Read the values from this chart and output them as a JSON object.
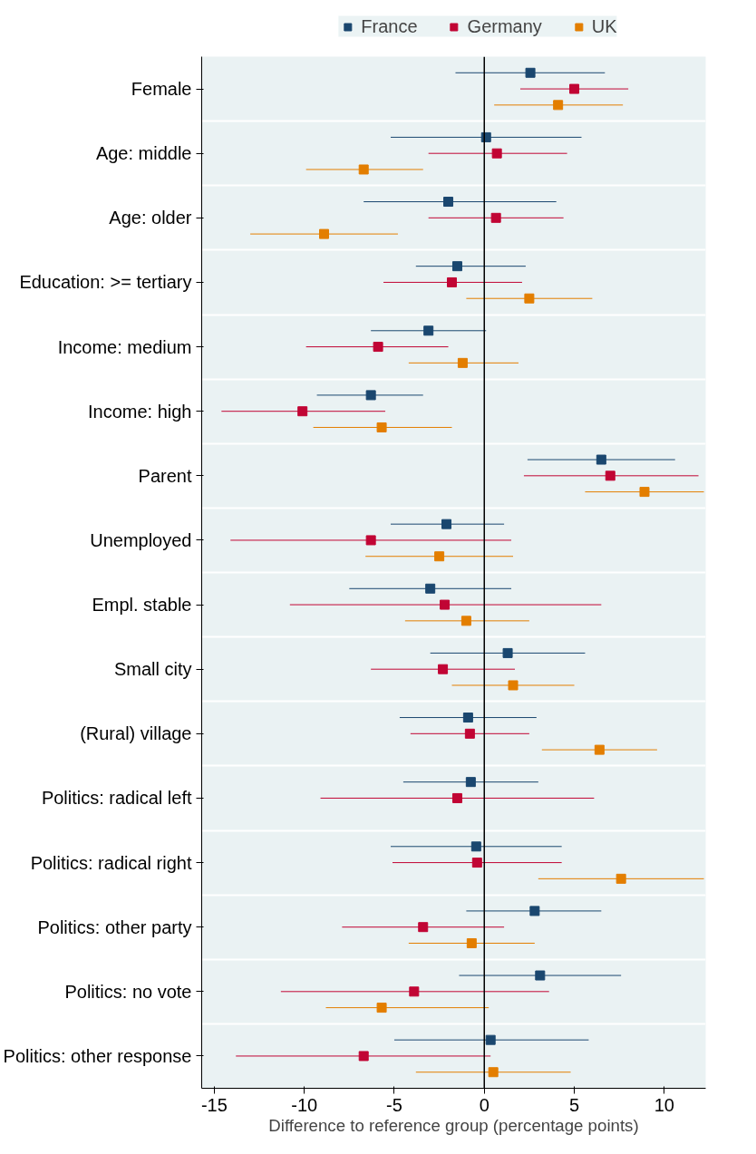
{
  "chart_data": {
    "type": "scatter",
    "orientation": "horizontal",
    "marker": "square",
    "grid": "y",
    "legend": "top",
    "xlabel": "Difference to reference group (percentage points)",
    "xlim": [
      -15.7,
      12.3
    ],
    "xticks": [
      -15,
      -10,
      -5,
      0,
      5,
      10
    ],
    "categories": [
      "Female",
      "Age: middle",
      "Age: older",
      "Education: >= tertiary",
      "Income: medium",
      "Income: high",
      "Parent",
      "Unemployed",
      "Empl. stable",
      "Small city",
      "(Rural) village",
      "Politics: radical left",
      "Politics: radical right",
      "Politics: other party",
      "Politics: no vote",
      "Politics: other response"
    ],
    "series": [
      {
        "name": "France",
        "color": "#1a476f",
        "values": [
          2.56,
          0.1,
          -2.0,
          -1.5,
          -3.1,
          -6.3,
          6.5,
          -2.1,
          -3.0,
          1.3,
          -0.9,
          -0.75,
          -0.45,
          2.8,
          3.1,
          0.35
        ],
        "errors": [
          [
            -1.6,
            6.7
          ],
          [
            -5.2,
            5.4
          ],
          [
            -6.7,
            4.0
          ],
          [
            -3.8,
            2.3
          ],
          [
            -6.3,
            0.1
          ],
          [
            -9.3,
            -3.4
          ],
          [
            2.4,
            10.6
          ],
          [
            -5.2,
            1.1
          ],
          [
            -7.5,
            1.5
          ],
          [
            -3.0,
            5.6
          ],
          [
            -4.7,
            2.9
          ],
          [
            -4.5,
            3.0
          ],
          [
            -5.2,
            4.3
          ],
          [
            -1.0,
            6.5
          ],
          [
            -1.4,
            7.6
          ],
          [
            -5.0,
            5.8
          ]
        ]
      },
      {
        "name": "Germany",
        "color": "#c10534",
        "values": [
          5.0,
          0.7,
          0.65,
          -1.8,
          -5.9,
          -10.1,
          7.0,
          -6.3,
          -2.2,
          -2.3,
          -0.8,
          -1.5,
          -0.4,
          -3.4,
          -3.9,
          -6.7
        ],
        "errors": [
          [
            2.0,
            8.0
          ],
          [
            -3.1,
            4.6
          ],
          [
            -3.1,
            4.4
          ],
          [
            -5.6,
            2.1
          ],
          [
            -9.9,
            -2.0
          ],
          [
            -14.6,
            -5.5
          ],
          [
            2.2,
            11.9
          ],
          [
            -14.1,
            1.5
          ],
          [
            -10.8,
            6.5
          ],
          [
            -6.3,
            1.7
          ],
          [
            -4.1,
            2.5
          ],
          [
            -9.1,
            6.1
          ],
          [
            -5.1,
            4.3
          ],
          [
            -7.9,
            1.1
          ],
          [
            -11.3,
            3.6
          ],
          [
            -13.8,
            0.35
          ]
        ]
      },
      {
        "name": "UK",
        "color": "#e37e00",
        "values": [
          4.1,
          -6.7,
          -8.9,
          2.5,
          -1.2,
          -5.7,
          8.9,
          -2.5,
          -1.0,
          1.6,
          6.4,
          null,
          7.6,
          -0.7,
          -5.7,
          0.5
        ],
        "errors": [
          [
            0.55,
            7.7
          ],
          [
            -9.9,
            -3.4
          ],
          [
            -13.0,
            -4.8
          ],
          [
            -1.0,
            6.0
          ],
          [
            -4.2,
            1.9
          ],
          [
            -9.5,
            -1.8
          ],
          [
            5.6,
            12.2
          ],
          [
            -6.6,
            1.6
          ],
          [
            -4.4,
            2.5
          ],
          [
            -1.8,
            5.0
          ],
          [
            3.2,
            9.6
          ],
          null,
          [
            3.0,
            12.2
          ],
          [
            -4.2,
            2.8
          ],
          [
            -8.8,
            0.25
          ],
          [
            -3.8,
            4.8
          ]
        ]
      }
    ],
    "ref_lines": [
      {
        "axis": "x",
        "value": 0,
        "color": "#000000"
      }
    ]
  }
}
